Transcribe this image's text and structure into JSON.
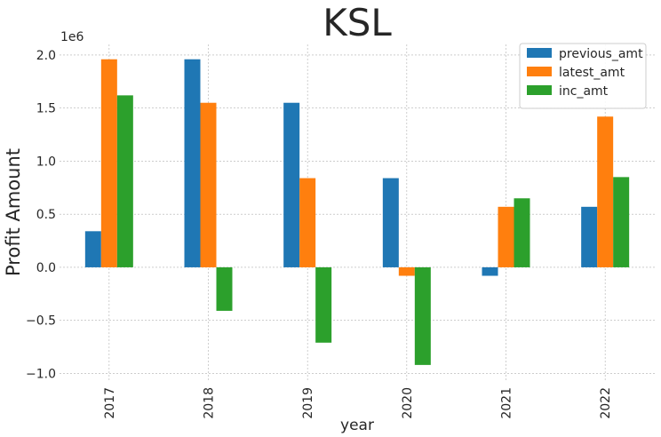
{
  "chart_data": {
    "type": "bar",
    "title": "KSL",
    "xlabel": "year",
    "ylabel": "Profit Amount",
    "y_offset_label": "1e6",
    "categories": [
      "2017",
      "2018",
      "2019",
      "2020",
      "2021",
      "2022"
    ],
    "series": [
      {
        "name": "previous_amt",
        "color": "#1f77b4",
        "values": [
          340000,
          1960000,
          1550000,
          840000,
          -80000,
          570000
        ]
      },
      {
        "name": "latest_amt",
        "color": "#ff7f0e",
        "values": [
          1960000,
          1550000,
          840000,
          -80000,
          570000,
          1420000
        ]
      },
      {
        "name": "inc_amt",
        "color": "#2ca02c",
        "values": [
          1620000,
          -410000,
          -710000,
          -920000,
          650000,
          850000
        ]
      }
    ],
    "ylim": [
      -1080000,
      2100000
    ],
    "yticks": [
      -1.0,
      -0.5,
      0.0,
      0.5,
      1.0,
      1.5,
      2.0
    ],
    "ytick_labels": [
      "−1.0",
      "−0.5",
      "0.0",
      "0.5",
      "1.0",
      "1.5",
      "2.0"
    ],
    "grid": true,
    "legend_position": "top-right"
  }
}
